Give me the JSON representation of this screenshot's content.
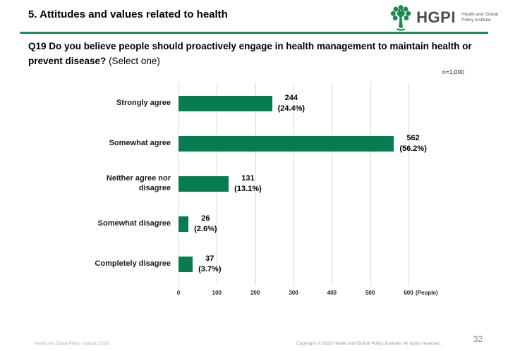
{
  "header": {
    "title": "5. Attitudes and values related to health",
    "logo": {
      "wordmark": "HGPI",
      "subtext_line1": "Health and Global",
      "subtext_line2": "Policy Institute"
    }
  },
  "question": {
    "bold_text": "Q19 Do you believe people should proactively engage in health management to maintain health or prevent disease?",
    "normal_text": " (Select one)"
  },
  "chart_data": {
    "type": "bar",
    "orientation": "horizontal",
    "categories": [
      "Strongly agree",
      "Somewhat agree",
      "Neither agree nor disagree",
      "Somewhat disagree",
      "Completely disagree"
    ],
    "values": [
      244,
      562,
      131,
      26,
      37
    ],
    "percent_labels": [
      "(24.4%)",
      "(56.2%)",
      "(13.1%)",
      "(2.6%)",
      "(3.7%)"
    ],
    "n_label": "n=1,000",
    "x_ticks": [
      "0",
      "100",
      "200",
      "300",
      "400",
      "500",
      "600"
    ],
    "x_axis_suffix": "(People)",
    "xlim": [
      0,
      600
    ],
    "grid": true,
    "legend": false,
    "bar_color": "#077c4e",
    "gridline_color": "#d9d9d9"
  },
  "footer": {
    "left": "Health and Global Policy Institute (2026)",
    "right": "Copyright © 2026 Health and Global Policy Institute. All rights reserved.",
    "page_number": "32"
  },
  "colors": {
    "accent_green": "#149355",
    "bar_green": "#077c4e"
  }
}
